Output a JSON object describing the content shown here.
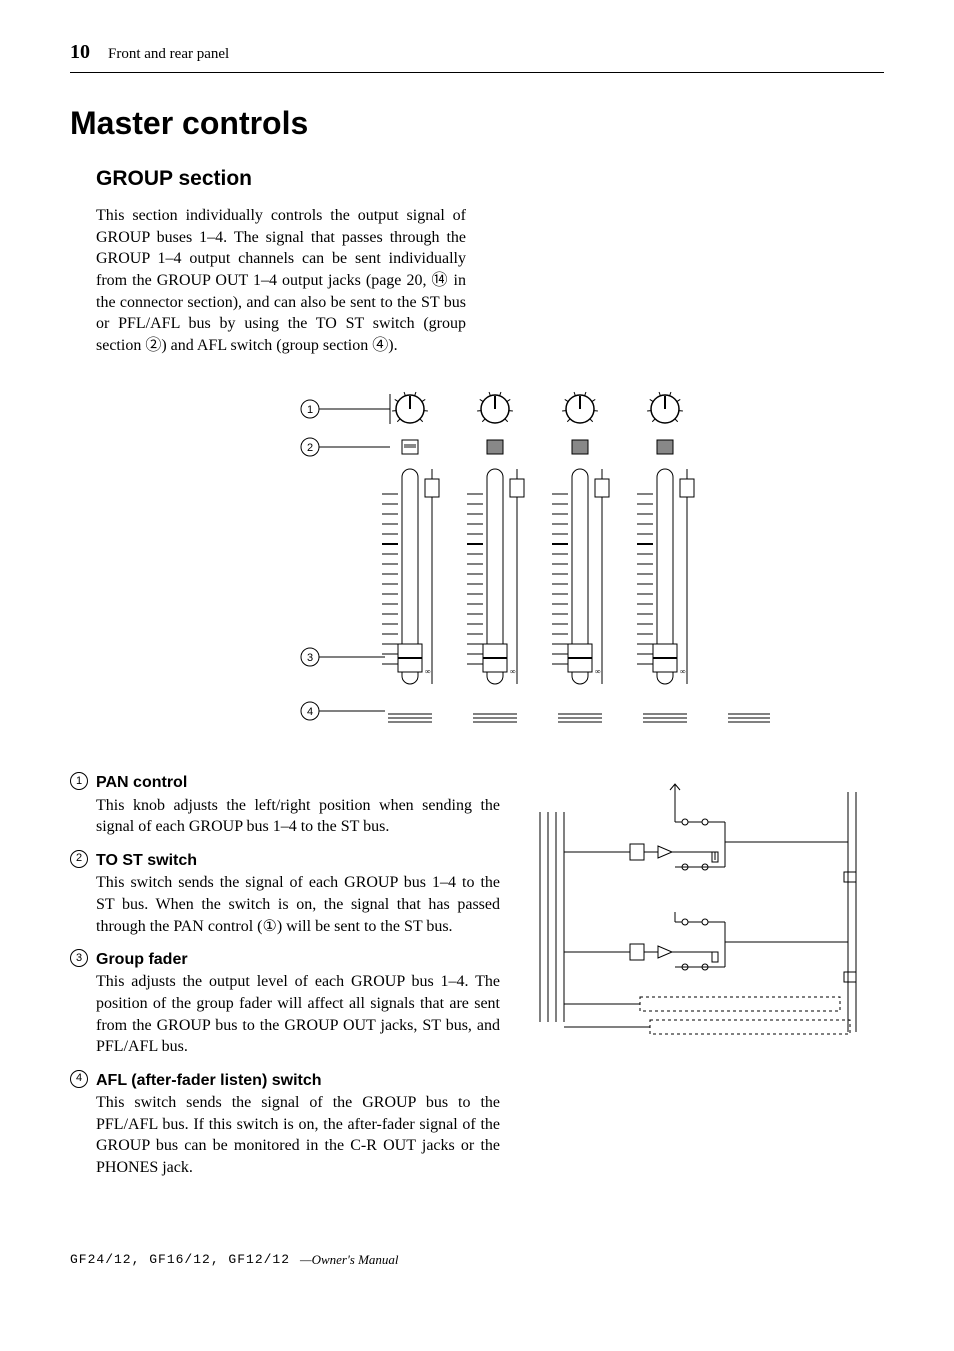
{
  "header": {
    "page_number": "10",
    "section_title": "Front and rear panel"
  },
  "main_heading": "Master controls",
  "sub_heading": "GROUP section",
  "intro_paragraph": "This section individually controls the output signal of GROUP buses 1–4. The signal that passes through the GROUP 1–4 output channels can be sent individually from the GROUP OUT 1–4 output jacks (page 20, ⑭ in the connector section), and can also be sent to the ST bus or PFL/AFL bus by using the TO ST switch (group section ②) and AFL switch (group section ④).",
  "panel_diagram": {
    "callouts": [
      "1",
      "2",
      "3",
      "4"
    ],
    "channel_count": 4,
    "colors": {
      "stroke": "#000000",
      "background": "#ffffff"
    }
  },
  "definitions": [
    {
      "num": "1",
      "title": "PAN control",
      "body": "This knob adjusts the left/right position when sending the signal of each GROUP bus 1–4 to the ST bus."
    },
    {
      "num": "2",
      "title": "TO ST switch",
      "body": "This switch sends the signal of each GROUP bus 1–4 to the ST bus. When the switch is on, the signal that has passed through the PAN control (①) will be sent to the ST bus."
    },
    {
      "num": "3",
      "title": "Group fader",
      "body": "This adjusts the output level of each GROUP bus 1–4. The position of the group fader will affect all signals that are sent from the GROUP bus to the GROUP OUT jacks, ST bus, and PFL/AFL bus."
    },
    {
      "num": "4",
      "title": "AFL (after-fader listen) switch",
      "body": "This switch sends the signal of the GROUP bus to the PFL/AFL bus. If this switch is on, the after-fader signal of the GROUP bus can be monitored in the C-R OUT jacks or the PHONES jack."
    }
  ],
  "footer": {
    "models": "GF24/12, GF16/12, GF12/12",
    "suffix": "—Owner's Manual"
  }
}
